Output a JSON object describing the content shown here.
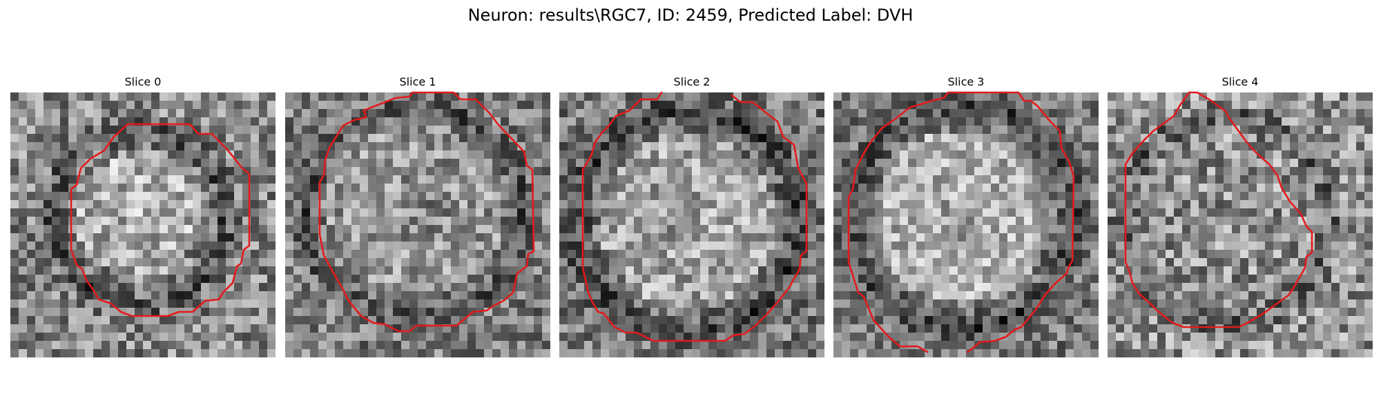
{
  "figure": {
    "title": "Neuron: results\\RGC7, ID: 2459, Predicted Label: DVH"
  },
  "colors": {
    "background": "#ffffff",
    "outline": "#e31a1c"
  },
  "panels": [
    {
      "title": "Slice 0",
      "image": "grayscale-microscopy-slice"
    },
    {
      "title": "Slice 1",
      "image": "grayscale-microscopy-slice"
    },
    {
      "title": "Slice 2",
      "image": "grayscale-microscopy-slice"
    },
    {
      "title": "Slice 3",
      "image": "grayscale-microscopy-slice"
    },
    {
      "title": "Slice 4",
      "image": "grayscale-microscopy-slice"
    }
  ]
}
